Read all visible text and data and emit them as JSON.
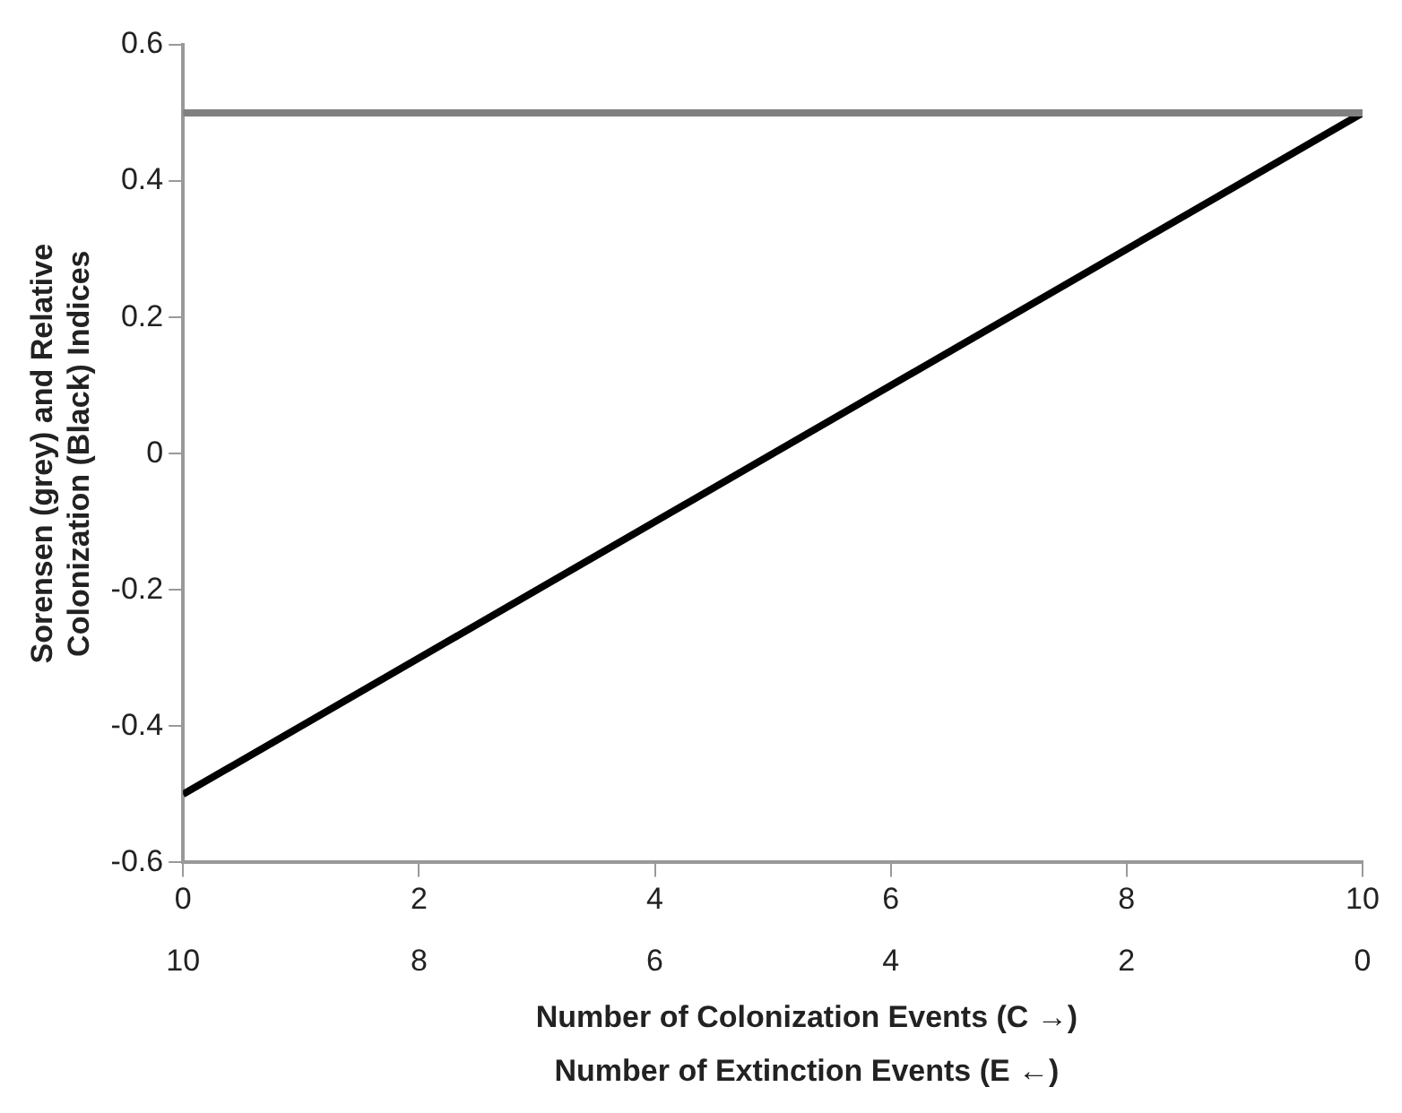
{
  "chart_data": {
    "type": "line",
    "xlabel": "Number of Colonization Events (C →)",
    "x2label": "Number of Extinction Events (E ←)",
    "ylabel": "Sorensen (grey) and Relative Colonization (Black) Indices",
    "x": [
      0,
      10
    ],
    "series": [
      {
        "color": "#808080",
        "values": [
          0.5,
          0.5
        ]
      },
      {
        "color": "#000000",
        "values": [
          -0.5,
          0.5
        ]
      }
    ],
    "xlim": [
      0,
      10
    ],
    "xticks": [
      0,
      2,
      4,
      6,
      8,
      10
    ],
    "x2lim": [
      10,
      0
    ],
    "x2ticks": [
      10,
      8,
      6,
      4,
      2,
      0
    ],
    "ylim": [
      -0.6,
      0.6
    ],
    "yticks": [
      -0.6,
      -0.4,
      -0.2,
      0,
      0.2,
      0.4,
      0.6
    ],
    "grid": false,
    "legend": false,
    "marker": "none",
    "line_style": "solid"
  }
}
